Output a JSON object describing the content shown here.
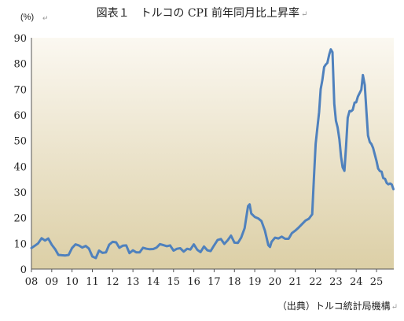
{
  "title": "図表１　トルコの CPI 前年同月比上昇率",
  "return_mark": "↵",
  "unit_label": "(%)",
  "source_label": "（出典）トルコ統計局機構",
  "chart_data": {
    "type": "line",
    "title": "図表１　トルコの CPI 前年同月比上昇率",
    "xlabel": "",
    "ylabel": "(%)",
    "ylim": [
      0,
      90
    ],
    "yticks": [
      0,
      10,
      20,
      30,
      40,
      50,
      60,
      70,
      80,
      90
    ],
    "xlim": [
      2008.0,
      2025.85
    ],
    "xtick_labels": [
      "08",
      "09",
      "10",
      "11",
      "12",
      "13",
      "14",
      "15",
      "16",
      "17",
      "18",
      "19",
      "20",
      "21",
      "22",
      "23",
      "24",
      "25"
    ],
    "grid": false,
    "legend": "none",
    "colors": {
      "line": "#4f81bd",
      "bg_top": "#fbf8f1",
      "bg_bottom": "#dccfa6"
    },
    "series": [
      {
        "values": [
          [
            2008.0,
            8.2
          ],
          [
            2008.17,
            9.1
          ],
          [
            2008.33,
            10.0
          ],
          [
            2008.5,
            12.0
          ],
          [
            2008.67,
            11.1
          ],
          [
            2008.83,
            11.9
          ],
          [
            2009.0,
            9.5
          ],
          [
            2009.17,
            7.7
          ],
          [
            2009.33,
            5.5
          ],
          [
            2009.5,
            5.4
          ],
          [
            2009.67,
            5.3
          ],
          [
            2009.83,
            5.5
          ],
          [
            2010.0,
            8.2
          ],
          [
            2010.17,
            9.6
          ],
          [
            2010.33,
            9.2
          ],
          [
            2010.5,
            8.4
          ],
          [
            2010.67,
            9.0
          ],
          [
            2010.83,
            8.0
          ],
          [
            2011.0,
            4.9
          ],
          [
            2011.17,
            4.3
          ],
          [
            2011.33,
            7.2
          ],
          [
            2011.5,
            6.3
          ],
          [
            2011.67,
            6.5
          ],
          [
            2011.83,
            9.5
          ],
          [
            2012.0,
            10.6
          ],
          [
            2012.17,
            10.4
          ],
          [
            2012.33,
            8.3
          ],
          [
            2012.5,
            9.1
          ],
          [
            2012.67,
            9.2
          ],
          [
            2012.83,
            6.2
          ],
          [
            2013.0,
            7.3
          ],
          [
            2013.17,
            6.5
          ],
          [
            2013.33,
            6.5
          ],
          [
            2013.5,
            8.3
          ],
          [
            2013.67,
            7.9
          ],
          [
            2013.83,
            7.7
          ],
          [
            2014.0,
            7.8
          ],
          [
            2014.17,
            8.4
          ],
          [
            2014.33,
            9.7
          ],
          [
            2014.5,
            9.3
          ],
          [
            2014.67,
            8.9
          ],
          [
            2014.83,
            9.2
          ],
          [
            2015.0,
            7.2
          ],
          [
            2015.17,
            7.9
          ],
          [
            2015.33,
            8.1
          ],
          [
            2015.5,
            6.8
          ],
          [
            2015.67,
            7.9
          ],
          [
            2015.83,
            7.6
          ],
          [
            2016.0,
            9.6
          ],
          [
            2016.17,
            7.5
          ],
          [
            2016.33,
            6.6
          ],
          [
            2016.5,
            8.8
          ],
          [
            2016.67,
            7.3
          ],
          [
            2016.83,
            7.0
          ],
          [
            2017.0,
            9.2
          ],
          [
            2017.17,
            11.3
          ],
          [
            2017.33,
            11.7
          ],
          [
            2017.5,
            9.8
          ],
          [
            2017.67,
            11.2
          ],
          [
            2017.83,
            13.0
          ],
          [
            2018.0,
            10.3
          ],
          [
            2018.17,
            10.2
          ],
          [
            2018.33,
            12.2
          ],
          [
            2018.5,
            15.9
          ],
          [
            2018.67,
            24.5
          ],
          [
            2018.75,
            25.2
          ],
          [
            2018.83,
            21.6
          ],
          [
            2019.0,
            20.3
          ],
          [
            2019.17,
            19.7
          ],
          [
            2019.33,
            18.7
          ],
          [
            2019.5,
            15.0
          ],
          [
            2019.67,
            9.3
          ],
          [
            2019.75,
            8.6
          ],
          [
            2019.83,
            10.6
          ],
          [
            2020.0,
            12.2
          ],
          [
            2020.17,
            11.9
          ],
          [
            2020.33,
            12.6
          ],
          [
            2020.5,
            11.8
          ],
          [
            2020.67,
            11.8
          ],
          [
            2020.83,
            14.0
          ],
          [
            2021.0,
            14.97
          ],
          [
            2021.17,
            16.2
          ],
          [
            2021.33,
            17.5
          ],
          [
            2021.5,
            18.9
          ],
          [
            2021.67,
            19.6
          ],
          [
            2021.83,
            21.3
          ],
          [
            2021.92,
            36.1
          ],
          [
            2022.0,
            48.7
          ],
          [
            2022.08,
            54.4
          ],
          [
            2022.17,
            61.1
          ],
          [
            2022.25,
            70.0
          ],
          [
            2022.33,
            73.5
          ],
          [
            2022.42,
            78.6
          ],
          [
            2022.5,
            79.6
          ],
          [
            2022.58,
            80.2
          ],
          [
            2022.67,
            83.5
          ],
          [
            2022.75,
            85.5
          ],
          [
            2022.83,
            84.4
          ],
          [
            2022.92,
            64.3
          ],
          [
            2023.0,
            57.7
          ],
          [
            2023.08,
            55.2
          ],
          [
            2023.17,
            50.5
          ],
          [
            2023.25,
            43.7
          ],
          [
            2023.33,
            39.6
          ],
          [
            2023.42,
            38.2
          ],
          [
            2023.5,
            47.8
          ],
          [
            2023.58,
            58.9
          ],
          [
            2023.67,
            61.5
          ],
          [
            2023.75,
            61.4
          ],
          [
            2023.83,
            62.0
          ],
          [
            2023.92,
            64.8
          ],
          [
            2024.0,
            64.9
          ],
          [
            2024.08,
            67.1
          ],
          [
            2024.17,
            68.5
          ],
          [
            2024.25,
            69.8
          ],
          [
            2024.33,
            75.5
          ],
          [
            2024.42,
            71.6
          ],
          [
            2024.5,
            61.8
          ],
          [
            2024.58,
            51.97
          ],
          [
            2024.67,
            49.4
          ],
          [
            2024.75,
            48.6
          ],
          [
            2024.83,
            47.1
          ],
          [
            2024.92,
            44.4
          ],
          [
            2025.0,
            42.1
          ],
          [
            2025.08,
            39.1
          ],
          [
            2025.17,
            38.1
          ],
          [
            2025.25,
            37.9
          ],
          [
            2025.33,
            35.4
          ],
          [
            2025.42,
            35.1
          ],
          [
            2025.5,
            33.5
          ],
          [
            2025.58,
            33.0
          ],
          [
            2025.67,
            33.3
          ],
          [
            2025.75,
            32.9
          ],
          [
            2025.83,
            31.1
          ]
        ]
      }
    ]
  }
}
